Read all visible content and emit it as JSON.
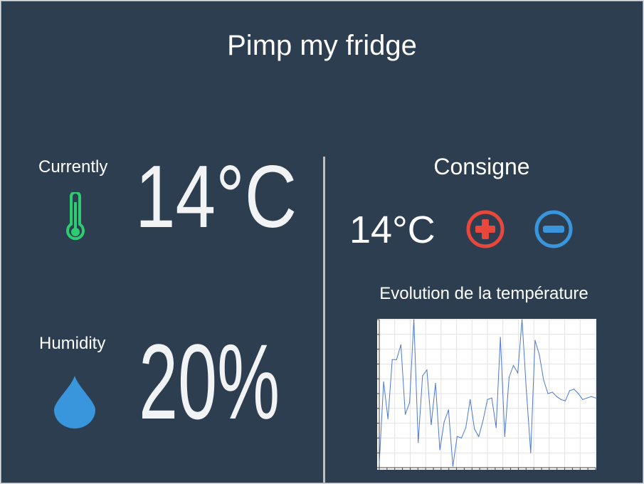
{
  "app": {
    "title": "Pimp my fridge"
  },
  "current": {
    "label": "Currently",
    "temperature": "14°C",
    "icon": "thermometer-icon",
    "icon_color": "#2ecc71"
  },
  "humidity": {
    "label": "Humidity",
    "value": "20%",
    "icon": "water-drop-icon",
    "icon_color": "#3a96dc"
  },
  "consigne": {
    "label": "Consigne",
    "value": "14°C",
    "increase_icon": "plus-circle-icon",
    "decrease_icon": "minus-circle-icon",
    "increase_color": "#e8473b",
    "decrease_color": "#3a96dc"
  },
  "evolution": {
    "label": "Evolution de la température"
  },
  "chart_data": {
    "type": "line",
    "title": "",
    "xlabel": "",
    "ylabel": "",
    "grid": true,
    "line_color": "#4a78d6",
    "ylim": [
      0,
      100
    ],
    "x": [
      0,
      1,
      2,
      3,
      4,
      5,
      6,
      7,
      8,
      9,
      10,
      11,
      12,
      13,
      14,
      15,
      16,
      17,
      18,
      19,
      20,
      21,
      22,
      23,
      24,
      25,
      26,
      27,
      28,
      29,
      30,
      31,
      32,
      33,
      34,
      35,
      36,
      37,
      38,
      39,
      40,
      41,
      42,
      43,
      44,
      45,
      46,
      47,
      48,
      49,
      50
    ],
    "values": [
      3,
      58,
      33,
      73,
      73,
      83,
      36,
      44,
      100,
      17,
      62,
      66,
      29,
      57,
      12,
      31,
      39,
      1,
      21,
      20,
      27,
      46,
      26,
      21,
      32,
      46,
      47,
      27,
      88,
      21,
      61,
      69,
      64,
      100,
      52,
      10,
      86,
      76,
      59,
      50,
      51,
      48,
      46,
      45,
      52,
      53,
      50,
      46,
      47,
      48,
      47
    ]
  }
}
